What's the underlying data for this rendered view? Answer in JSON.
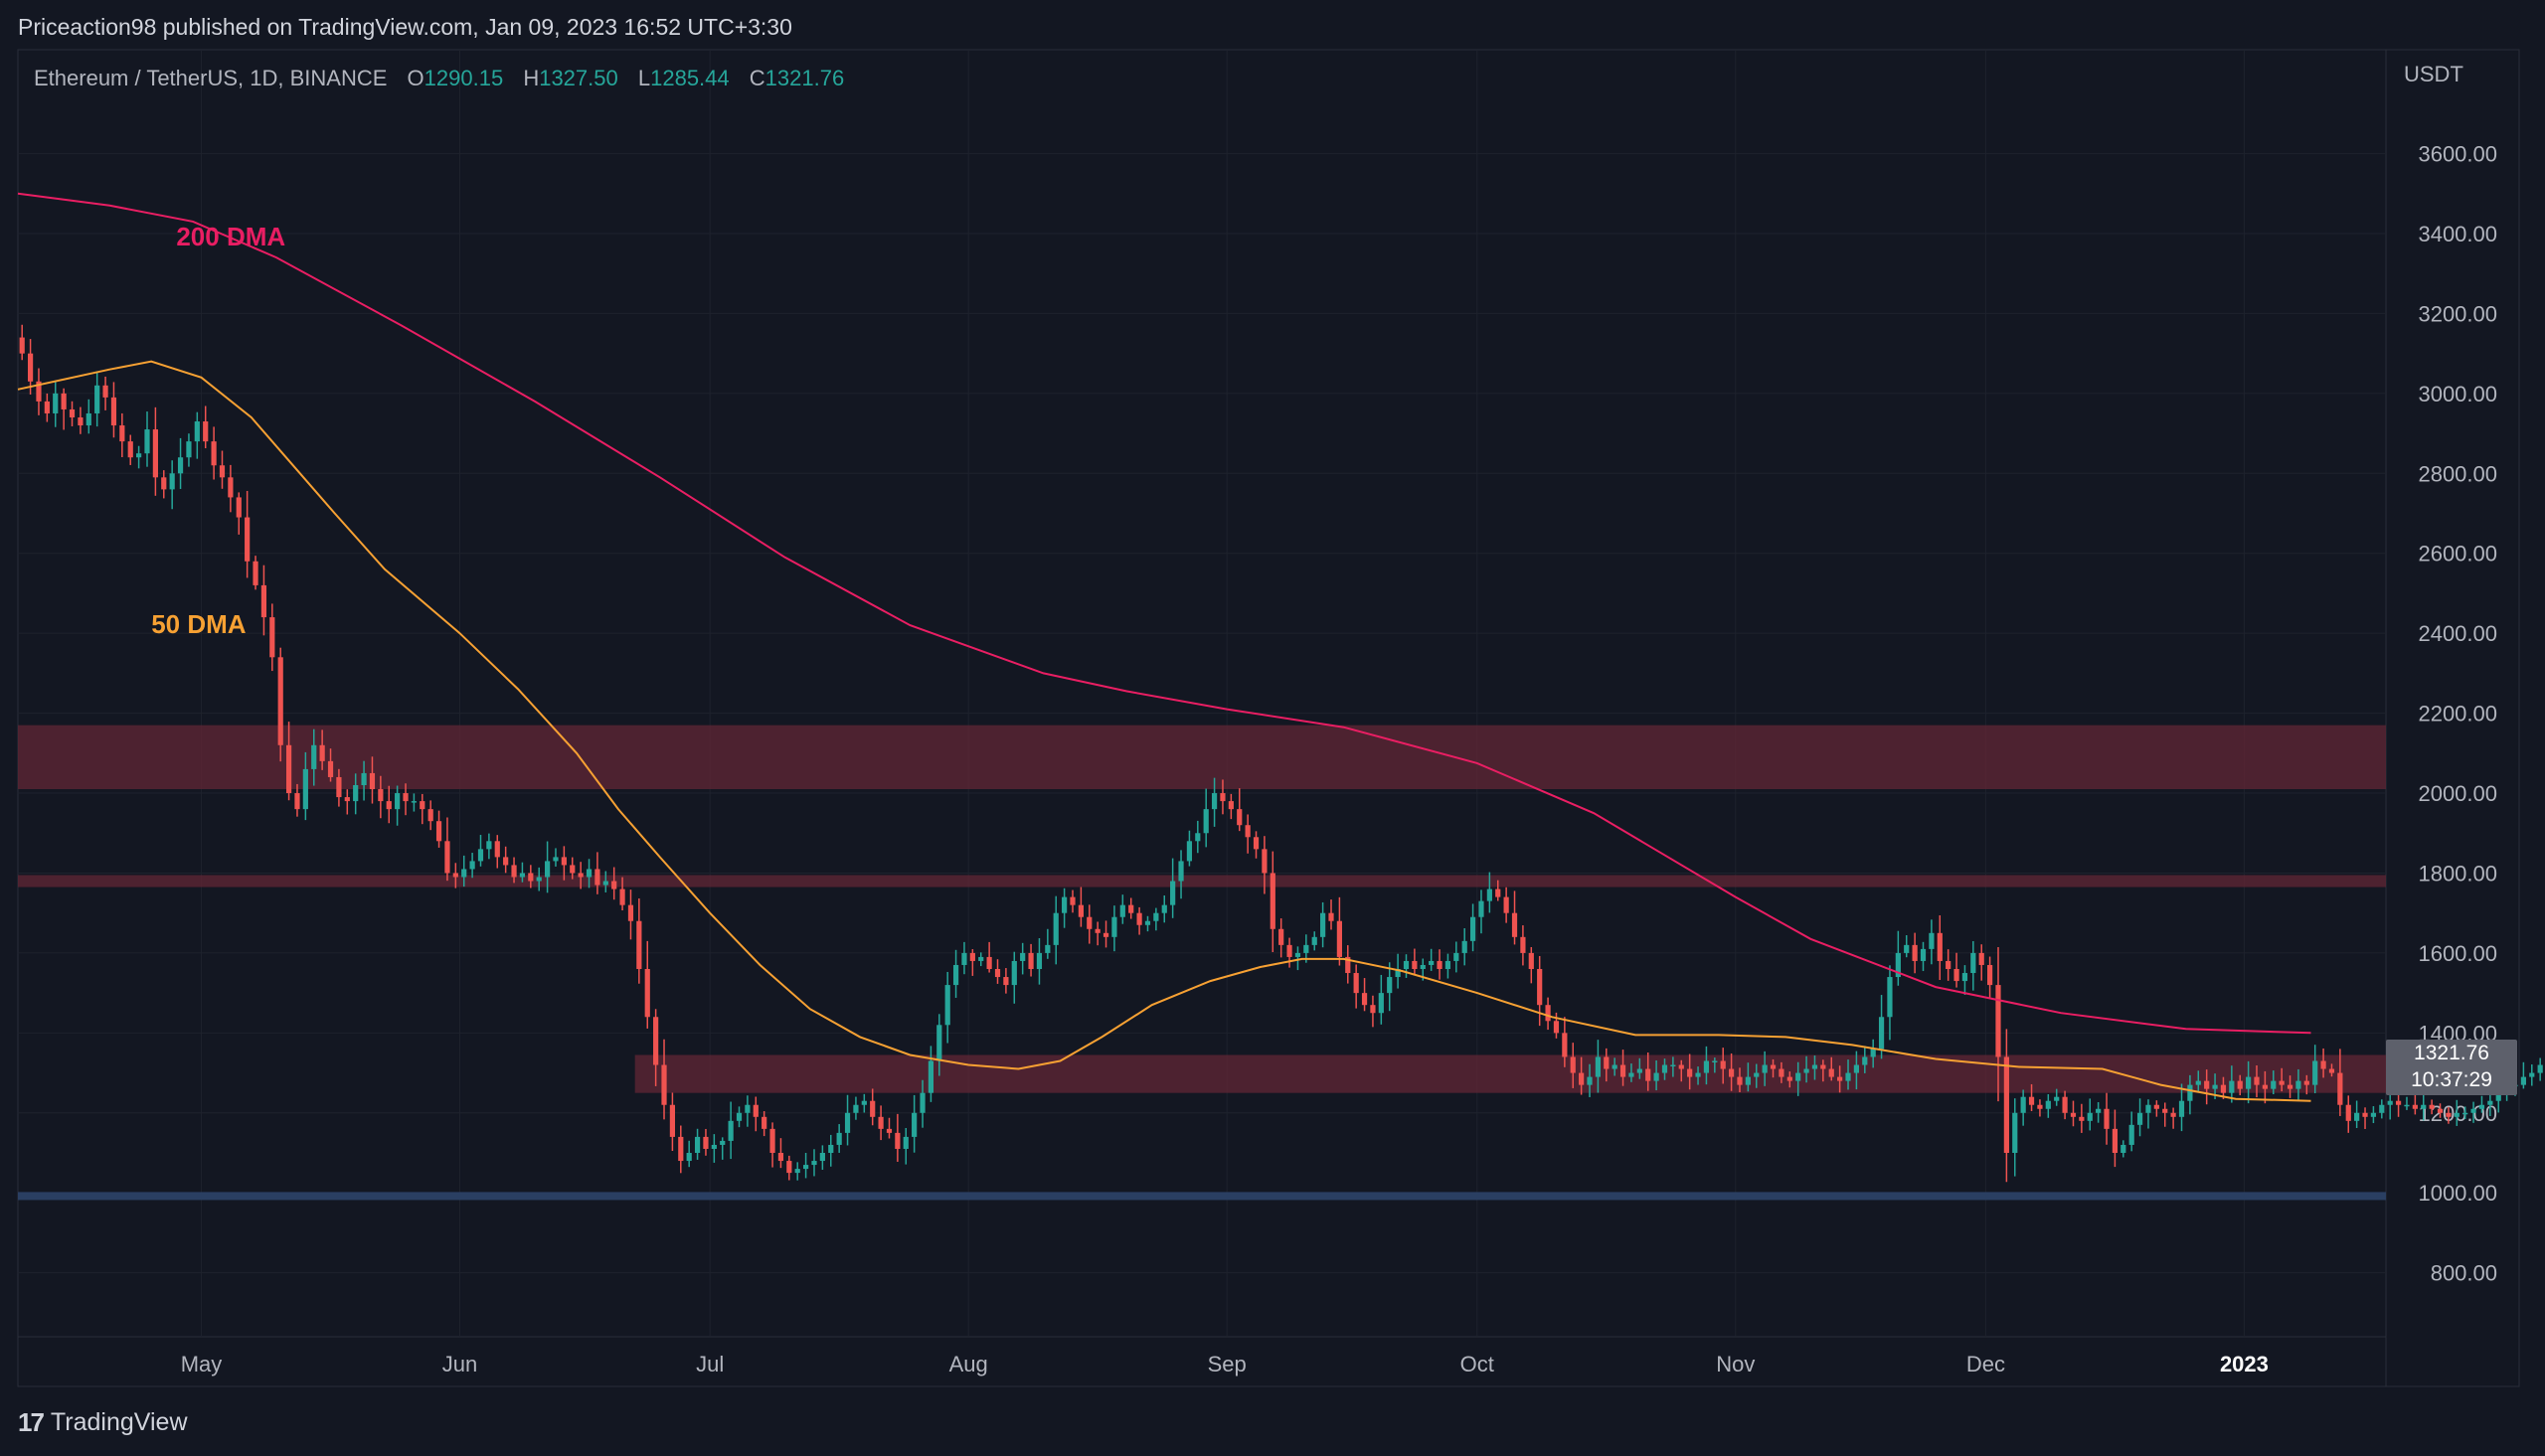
{
  "header": {
    "publisher": "Priceaction98 published on TradingView.com, Jan 09, 2023 16:52 UTC+3:30"
  },
  "symbol": {
    "name": "Ethereum / TetherUS, 1D, BINANCE",
    "o_label": "O",
    "o_value": "1290.15",
    "h_label": "H",
    "h_value": "1327.50",
    "l_label": "L",
    "l_value": "1285.44",
    "c_label": "C",
    "c_value": "1321.76"
  },
  "price_tag": {
    "price": "1321.76",
    "countdown": "10:37:29"
  },
  "footer": {
    "brand": "TradingView"
  },
  "colors": {
    "background": "#131722",
    "grid": "#1e222d",
    "up": "#26a69a",
    "down": "#ef5350",
    "dma50": "#f7a133",
    "dma200": "#e91e63",
    "zone": "#5c2634",
    "support": "#2a3f62"
  },
  "chart_data": {
    "type": "candlestick",
    "y_unit": "USDT",
    "y_range": [
      640,
      3860
    ],
    "y_ticks": [
      {
        "value": 3600,
        "label": "3600.00"
      },
      {
        "value": 3400,
        "label": "3400.00"
      },
      {
        "value": 3200,
        "label": "3200.00"
      },
      {
        "value": 3000,
        "label": "3000.00"
      },
      {
        "value": 2800,
        "label": "2800.00"
      },
      {
        "value": 2600,
        "label": "2600.00"
      },
      {
        "value": 2400,
        "label": "2400.00"
      },
      {
        "value": 2200,
        "label": "2200.00"
      },
      {
        "value": 2000,
        "label": "2000.00"
      },
      {
        "value": 1800,
        "label": "1800.00"
      },
      {
        "value": 1600,
        "label": "1600.00"
      },
      {
        "value": 1400,
        "label": "1400.00"
      },
      {
        "value": 1200,
        "label": "1200.00"
      },
      {
        "value": 1000,
        "label": "1000.00"
      },
      {
        "value": 800,
        "label": "800.00"
      }
    ],
    "x_range": [
      "2022-04-09",
      "2023-01-18"
    ],
    "x_ticks": [
      {
        "date": "2022-05-01",
        "label": "May",
        "bold": false
      },
      {
        "date": "2022-06-01",
        "label": "Jun",
        "bold": false
      },
      {
        "date": "2022-07-01",
        "label": "Jul",
        "bold": false
      },
      {
        "date": "2022-08-01",
        "label": "Aug",
        "bold": false
      },
      {
        "date": "2022-09-01",
        "label": "Sep",
        "bold": false
      },
      {
        "date": "2022-10-01",
        "label": "Oct",
        "bold": false
      },
      {
        "date": "2022-11-01",
        "label": "Nov",
        "bold": false
      },
      {
        "date": "2022-12-01",
        "label": "Dec",
        "bold": false
      },
      {
        "date": "2023-01-01",
        "label": "2023",
        "bold": true
      }
    ],
    "zones": [
      {
        "from": 2010,
        "to": 2170,
        "start": "2022-04-09",
        "end": "2023-01-18",
        "kind": "resistance"
      },
      {
        "from": 1765,
        "to": 1795,
        "start": "2022-04-09",
        "end": "2023-01-18",
        "kind": "resistance"
      },
      {
        "from": 1250,
        "to": 1345,
        "start": "2022-06-22",
        "end": "2023-01-18",
        "kind": "resistance"
      },
      {
        "from": 982,
        "to": 1002,
        "start": "2022-04-09",
        "end": "2023-01-18",
        "kind": "support"
      }
    ],
    "annotations": [
      {
        "text": "200 DMA",
        "date": "2022-04-28",
        "value": 3370,
        "color": "#e91e63"
      },
      {
        "text": "50 DMA",
        "date": "2022-04-25",
        "value": 2400,
        "color": "#f7a133"
      }
    ],
    "series": [
      {
        "name": "50 DMA",
        "color": "#f7a133",
        "points": [
          [
            "2022-04-09",
            3010
          ],
          [
            "2022-04-20",
            3060
          ],
          [
            "2022-04-25",
            3080
          ],
          [
            "2022-05-01",
            3040
          ],
          [
            "2022-05-07",
            2940
          ],
          [
            "2022-05-12",
            2820
          ],
          [
            "2022-05-17",
            2700
          ],
          [
            "2022-05-23",
            2560
          ],
          [
            "2022-06-01",
            2400
          ],
          [
            "2022-06-08",
            2260
          ],
          [
            "2022-06-15",
            2100
          ],
          [
            "2022-06-20",
            1960
          ],
          [
            "2022-06-25",
            1840
          ],
          [
            "2022-07-01",
            1700
          ],
          [
            "2022-07-07",
            1570
          ],
          [
            "2022-07-13",
            1460
          ],
          [
            "2022-07-19",
            1390
          ],
          [
            "2022-07-25",
            1345
          ],
          [
            "2022-08-01",
            1320
          ],
          [
            "2022-08-07",
            1310
          ],
          [
            "2022-08-12",
            1330
          ],
          [
            "2022-08-17",
            1390
          ],
          [
            "2022-08-23",
            1470
          ],
          [
            "2022-08-30",
            1530
          ],
          [
            "2022-09-05",
            1565
          ],
          [
            "2022-09-10",
            1585
          ],
          [
            "2022-09-15",
            1585
          ],
          [
            "2022-09-22",
            1555
          ],
          [
            "2022-10-01",
            1500
          ],
          [
            "2022-10-10",
            1440
          ],
          [
            "2022-10-20",
            1395
          ],
          [
            "2022-10-30",
            1395
          ],
          [
            "2022-11-07",
            1390
          ],
          [
            "2022-11-15",
            1370
          ],
          [
            "2022-11-25",
            1335
          ],
          [
            "2022-12-05",
            1315
          ],
          [
            "2022-12-15",
            1310
          ],
          [
            "2022-12-22",
            1270
          ],
          [
            "2022-12-31",
            1235
          ],
          [
            "2023-01-09",
            1230
          ]
        ]
      },
      {
        "name": "200 DMA",
        "color": "#e91e63",
        "points": [
          [
            "2022-04-09",
            3500
          ],
          [
            "2022-04-20",
            3470
          ],
          [
            "2022-04-30",
            3430
          ],
          [
            "2022-05-10",
            3340
          ],
          [
            "2022-05-25",
            3170
          ],
          [
            "2022-06-10",
            2980
          ],
          [
            "2022-06-25",
            2790
          ],
          [
            "2022-07-10",
            2590
          ],
          [
            "2022-07-25",
            2420
          ],
          [
            "2022-08-10",
            2300
          ],
          [
            "2022-08-20",
            2255
          ],
          [
            "2022-09-01",
            2210
          ],
          [
            "2022-09-15",
            2165
          ],
          [
            "2022-10-01",
            2075
          ],
          [
            "2022-10-15",
            1950
          ],
          [
            "2022-11-01",
            1740
          ],
          [
            "2022-11-10",
            1635
          ],
          [
            "2022-11-25",
            1515
          ],
          [
            "2022-12-10",
            1450
          ],
          [
            "2022-12-25",
            1410
          ],
          [
            "2023-01-09",
            1400
          ]
        ]
      },
      {
        "name": "ETHUSDT",
        "type": "candles",
        "start": "2022-04-09",
        "close": [
          3100,
          3030,
          2980,
          2950,
          3000,
          2960,
          2940,
          2920,
          2950,
          3020,
          2990,
          2920,
          2880,
          2840,
          2850,
          2910,
          2790,
          2760,
          2800,
          2840,
          2880,
          2930,
          2880,
          2820,
          2790,
          2740,
          2690,
          2580,
          2520,
          2440,
          2340,
          2120,
          2000,
          1960,
          2060,
          2120,
          2080,
          2040,
          1990,
          1980,
          2020,
          2050,
          2010,
          1980,
          1960,
          2000,
          1980,
          1980,
          1960,
          1930,
          1880,
          1800,
          1790,
          1810,
          1830,
          1860,
          1880,
          1840,
          1820,
          1790,
          1800,
          1780,
          1790,
          1830,
          1840,
          1820,
          1800,
          1790,
          1810,
          1770,
          1780,
          1760,
          1720,
          1680,
          1560,
          1440,
          1320,
          1220,
          1140,
          1080,
          1100,
          1140,
          1110,
          1120,
          1130,
          1180,
          1200,
          1220,
          1190,
          1160,
          1100,
          1080,
          1050,
          1060,
          1070,
          1080,
          1100,
          1120,
          1150,
          1200,
          1220,
          1230,
          1190,
          1160,
          1150,
          1110,
          1140,
          1200,
          1250,
          1330,
          1420,
          1520,
          1570,
          1600,
          1580,
          1590,
          1560,
          1540,
          1520,
          1580,
          1600,
          1560,
          1600,
          1620,
          1700,
          1740,
          1720,
          1690,
          1660,
          1650,
          1640,
          1690,
          1720,
          1700,
          1670,
          1680,
          1700,
          1720,
          1780,
          1830,
          1880,
          1900,
          1960,
          2000,
          1980,
          1960,
          1920,
          1890,
          1860,
          1800,
          1660,
          1620,
          1590,
          1600,
          1620,
          1640,
          1700,
          1680,
          1590,
          1550,
          1500,
          1470,
          1450,
          1500,
          1540,
          1560,
          1580,
          1560,
          1570,
          1580,
          1560,
          1580,
          1600,
          1630,
          1690,
          1730,
          1760,
          1740,
          1700,
          1640,
          1600,
          1560,
          1470,
          1430,
          1400,
          1340,
          1300,
          1270,
          1290,
          1340,
          1310,
          1320,
          1290,
          1300,
          1310,
          1280,
          1300,
          1320,
          1320,
          1310,
          1290,
          1300,
          1330,
          1330,
          1310,
          1290,
          1270,
          1290,
          1300,
          1320,
          1310,
          1290,
          1280,
          1300,
          1310,
          1320,
          1310,
          1290,
          1280,
          1300,
          1320,
          1340,
          1360,
          1440,
          1540,
          1600,
          1620,
          1580,
          1610,
          1650,
          1580,
          1560,
          1530,
          1550,
          1600,
          1570,
          1520,
          1340,
          1100,
          1200,
          1240,
          1220,
          1210,
          1230,
          1240,
          1200,
          1190,
          1180,
          1200,
          1210,
          1160,
          1100,
          1120,
          1170,
          1200,
          1220,
          1210,
          1200,
          1190,
          1230,
          1270,
          1280,
          1260,
          1270,
          1250,
          1280,
          1260,
          1290,
          1270,
          1260,
          1280,
          1270,
          1260,
          1280,
          1270,
          1330,
          1310,
          1300,
          1220,
          1180,
          1200,
          1190,
          1200,
          1220,
          1230,
          1220,
          1220,
          1210,
          1220,
          1210,
          1200,
          1190,
          1200,
          1200,
          1210,
          1220,
          1230,
          1250,
          1270,
          1270,
          1290,
          1300,
          1320
        ]
      }
    ]
  }
}
